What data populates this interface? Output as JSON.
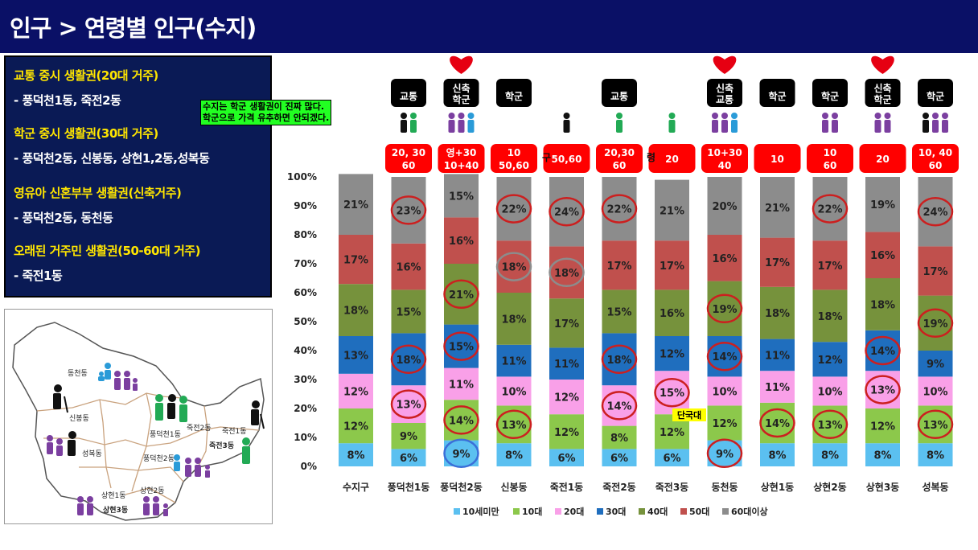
{
  "title": "인구 > 연령별 인구(수지)",
  "info": [
    {
      "heading": "교통 중시 생활권(20대 거주)",
      "detail": "- 풍덕천1동, 죽전2동"
    },
    {
      "heading": "학군 중시 생활권(30대 거주)",
      "detail": "- 풍덕천2동, 신봉동, 상현1,2동,성복동"
    },
    {
      "heading": "영유아 신혼부부 생활권(신축거주)",
      "detail": "- 풍덕천2동, 동천동"
    },
    {
      "heading": "오래된 거주민 생활권(50-60대 거주)",
      "detail": "- 죽전1동"
    }
  ],
  "note": [
    "수지는 학군 생활권이 진짜 많다.",
    "학군으로 가격 유추하면 안되겠다."
  ],
  "map_labels": [
    "동천동",
    "신봉동",
    "성복동",
    "풍덕천1동",
    "풍덕천2동",
    "죽전2동",
    "죽전1동",
    "죽전3동",
    "상현1동",
    "상현2동",
    "상현3동"
  ],
  "dankook_label": "단국대",
  "chart_title_fragment": "구 ",
  "chart_title_fragment2": "령",
  "tag_boxes": [
    {
      "index": 1,
      "label": [
        "교통"
      ]
    },
    {
      "index": 2,
      "label": [
        "신축",
        "학군"
      ]
    },
    {
      "index": 3,
      "label": [
        "학군"
      ]
    },
    {
      "index": 5,
      "label": [
        "교통"
      ]
    },
    {
      "index": 7,
      "label": [
        "신축",
        "교통"
      ]
    },
    {
      "index": 8,
      "label": [
        "학군"
      ]
    },
    {
      "index": 9,
      "label": [
        "학군"
      ]
    },
    {
      "index": 10,
      "label": [
        "신축",
        "학군"
      ]
    },
    {
      "index": 11,
      "label": [
        "학군"
      ]
    }
  ],
  "hearts": [
    2,
    7,
    10
  ],
  "age_badges": [
    {
      "index": 1,
      "label": [
        "20, 30",
        "60"
      ]
    },
    {
      "index": 2,
      "label": [
        "영+30",
        "10+40"
      ]
    },
    {
      "index": 3,
      "label": [
        "10",
        "50,60"
      ]
    },
    {
      "index": 4,
      "label": [
        "50,60"
      ]
    },
    {
      "index": 5,
      "label": [
        "20,30",
        "60"
      ]
    },
    {
      "index": 6,
      "label": [
        "20"
      ]
    },
    {
      "index": 7,
      "label": [
        "10+30",
        "40"
      ]
    },
    {
      "index": 8,
      "label": [
        "10"
      ]
    },
    {
      "index": 9,
      "label": [
        "10",
        "60"
      ]
    },
    {
      "index": 10,
      "label": [
        "20"
      ]
    },
    {
      "index": 11,
      "label": [
        "10, 40",
        "60"
      ]
    }
  ],
  "colors": {
    "header_bg": "#0a1066",
    "badge_red": "#ff0000",
    "circle_red": "#cc1f1f",
    "circle_grey": "#8c8c8c",
    "circle_blue": "#3b6fd8"
  },
  "chart_data": {
    "type": "bar",
    "stacked": true,
    "percent": true,
    "categories": [
      "수지구",
      "풍덕천1동",
      "풍덕천2동",
      "신봉동",
      "죽전1동",
      "죽전2동",
      "죽전3동",
      "동천동",
      "상현1동",
      "상현2동",
      "상현3동",
      "성복동"
    ],
    "ylim": [
      0,
      100
    ],
    "yticks": [
      "0%",
      "10%",
      "20%",
      "30%",
      "40%",
      "50%",
      "60%",
      "70%",
      "80%",
      "90%",
      "100%"
    ],
    "legend_position": "bottom",
    "series": [
      {
        "name": "10세미만",
        "color": "#5bc0f0",
        "values": [
          8,
          6,
          9,
          8,
          6,
          6,
          6,
          9,
          8,
          8,
          8,
          8
        ]
      },
      {
        "name": "10대",
        "color": "#8cc84b",
        "values": [
          12,
          9,
          14,
          13,
          12,
          8,
          12,
          12,
          14,
          13,
          12,
          13
        ]
      },
      {
        "name": "20대",
        "color": "#f9a0e8",
        "values": [
          12,
          13,
          11,
          10,
          12,
          14,
          15,
          10,
          11,
          10,
          13,
          10
        ]
      },
      {
        "name": "30대",
        "color": "#1f6ebe",
        "values": [
          13,
          18,
          15,
          11,
          11,
          18,
          12,
          14,
          11,
          12,
          14,
          9
        ]
      },
      {
        "name": "40대",
        "color": "#76923c",
        "values": [
          18,
          15,
          21,
          18,
          17,
          15,
          16,
          19,
          18,
          18,
          18,
          19
        ]
      },
      {
        "name": "50대",
        "color": "#c0504d",
        "values": [
          17,
          16,
          16,
          18,
          18,
          17,
          17,
          16,
          17,
          17,
          16,
          17
        ]
      },
      {
        "name": "60대이상",
        "color": "#8c8c8c",
        "values": [
          21,
          23,
          15,
          22,
          24,
          22,
          21,
          20,
          21,
          22,
          19,
          24
        ]
      }
    ],
    "highlights": [
      {
        "cat": 1,
        "series": 6,
        "color": "red"
      },
      {
        "cat": 1,
        "series": 3,
        "color": "red"
      },
      {
        "cat": 1,
        "series": 2,
        "color": "red"
      },
      {
        "cat": 2,
        "series": 4,
        "color": "red"
      },
      {
        "cat": 2,
        "series": 3,
        "color": "red"
      },
      {
        "cat": 2,
        "series": 1,
        "color": "red"
      },
      {
        "cat": 2,
        "series": 0,
        "color": "blue"
      },
      {
        "cat": 3,
        "series": 6,
        "color": "red"
      },
      {
        "cat": 3,
        "series": 5,
        "color": "grey"
      },
      {
        "cat": 3,
        "series": 1,
        "color": "red"
      },
      {
        "cat": 4,
        "series": 6,
        "color": "red"
      },
      {
        "cat": 4,
        "series": 5,
        "color": "grey"
      },
      {
        "cat": 5,
        "series": 6,
        "color": "red"
      },
      {
        "cat": 5,
        "series": 3,
        "color": "red"
      },
      {
        "cat": 5,
        "series": 2,
        "color": "red"
      },
      {
        "cat": 6,
        "series": 2,
        "color": "red"
      },
      {
        "cat": 7,
        "series": 4,
        "color": "red"
      },
      {
        "cat": 7,
        "series": 3,
        "color": "red"
      },
      {
        "cat": 7,
        "series": 0,
        "color": "red"
      },
      {
        "cat": 8,
        "series": 1,
        "color": "red"
      },
      {
        "cat": 9,
        "series": 6,
        "color": "red"
      },
      {
        "cat": 9,
        "series": 1,
        "color": "red"
      },
      {
        "cat": 10,
        "series": 3,
        "color": "red"
      },
      {
        "cat": 10,
        "series": 2,
        "color": "red"
      },
      {
        "cat": 11,
        "series": 6,
        "color": "red"
      },
      {
        "cat": 11,
        "series": 4,
        "color": "red"
      },
      {
        "cat": 11,
        "series": 1,
        "color": "red"
      }
    ]
  }
}
